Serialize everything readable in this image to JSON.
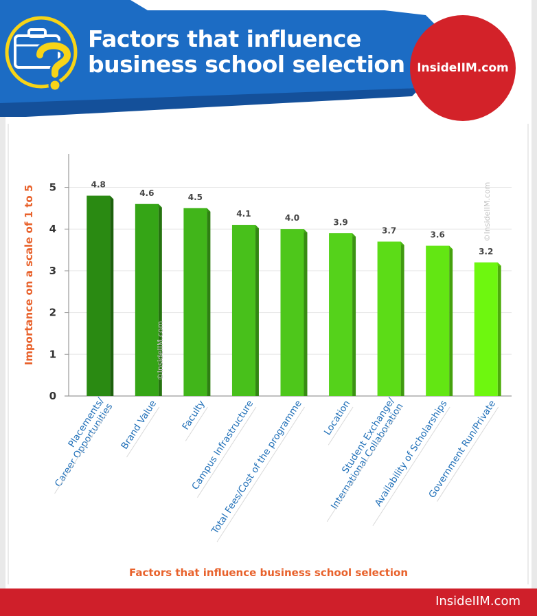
{
  "header": {
    "title_line1": "Factors that influence",
    "title_line2": "business school selection",
    "brand": "InsideIIM.com",
    "icon": "briefcase-question-icon"
  },
  "footer": {
    "brand": "InsideIIM.com"
  },
  "watermarks": [
    "©InsideIIM.com",
    "©InsideIIM.com"
  ],
  "colors": {
    "header_blue": "#1c6cc4",
    "header_blue_dark": "#14509a",
    "icon_yellow": "#f7d417",
    "brand_red": "#d32229",
    "axis_title": "#e8622c",
    "category_label": "#1f6fb8",
    "bar_gradient": [
      "#2a8a12",
      "#35a516",
      "#41b51a",
      "#48c01b",
      "#4ec71b",
      "#55d21b",
      "#5cdc17",
      "#63e613",
      "#6ef70f"
    ]
  },
  "chart_data": {
    "type": "bar",
    "title": "",
    "xlabel": "Factors that influence business school selection",
    "ylabel": "Importance on a scale of 1 to 5",
    "ylim": [
      0,
      5.8
    ],
    "yticks": [
      0,
      1,
      2,
      3,
      4,
      5
    ],
    "grid": true,
    "categories": [
      [
        "Placements/",
        "Career Opportunities"
      ],
      [
        "Brand Value"
      ],
      [
        "Faculty"
      ],
      [
        "Campus Infrastructure"
      ],
      [
        "Total Fees/Cost of the programme"
      ],
      [
        "Location"
      ],
      [
        "Student Exchange/",
        "International Collaboration"
      ],
      [
        "Availability of Scholarships"
      ],
      [
        "Government Run/Private"
      ]
    ],
    "values": [
      4.8,
      4.6,
      4.5,
      4.1,
      4.0,
      3.9,
      3.7,
      3.6,
      3.2
    ],
    "value_labels": [
      "4.8",
      "4.6",
      "4.5",
      "4.1",
      "4.0",
      "3.9",
      "3.7",
      "3.6",
      "3.2"
    ]
  }
}
